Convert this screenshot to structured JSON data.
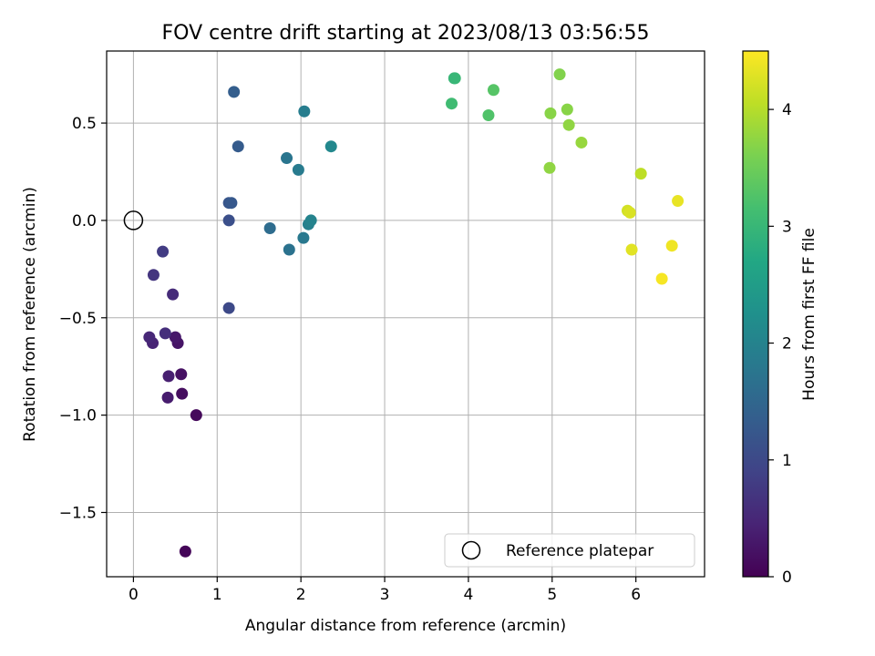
{
  "chart_data": {
    "type": "scatter",
    "title": "FOV centre drift starting at 2023/08/13 03:56:55",
    "xlabel": "Angular distance from reference (arcmin)",
    "ylabel": "Rotation from reference (arcmin)",
    "xlim": [
      -0.32,
      6.82
    ],
    "ylim": [
      -1.83,
      0.87
    ],
    "xticks": [
      0,
      1,
      2,
      3,
      4,
      5,
      6
    ],
    "xtick_labels": [
      "0",
      "1",
      "2",
      "3",
      "4",
      "5",
      "6"
    ],
    "yticks": [
      -1.5,
      -1.0,
      -0.5,
      0.0,
      0.5
    ],
    "ytick_labels": [
      "−1.5",
      "−1.0",
      "−0.5",
      "0.0",
      "0.5"
    ],
    "grid": true,
    "colormap": "viridis",
    "colorbar": {
      "label": "Hours from first FF file",
      "range": [
        0,
        4.5
      ],
      "ticks": [
        0,
        1,
        2,
        3,
        4
      ],
      "tick_labels": [
        "0",
        "1",
        "2",
        "3",
        "4"
      ]
    },
    "legend": {
      "placement": "lower-right",
      "entries": [
        {
          "label": "Reference platepar",
          "marker": "open-circle"
        }
      ]
    },
    "reference_point": {
      "x": 0,
      "y": 0
    },
    "points": [
      {
        "x": 0.62,
        "y": -1.7,
        "hours": 0.05
      },
      {
        "x": 0.75,
        "y": -1.0,
        "hours": 0.1
      },
      {
        "x": 0.58,
        "y": -0.89,
        "hours": 0.15
      },
      {
        "x": 0.57,
        "y": -0.79,
        "hours": 0.2
      },
      {
        "x": 0.53,
        "y": -0.63,
        "hours": 0.25
      },
      {
        "x": 0.5,
        "y": -0.6,
        "hours": 0.3
      },
      {
        "x": 0.41,
        "y": -0.91,
        "hours": 0.35
      },
      {
        "x": 0.42,
        "y": -0.8,
        "hours": 0.4
      },
      {
        "x": 0.23,
        "y": -0.63,
        "hours": 0.45
      },
      {
        "x": 0.19,
        "y": -0.6,
        "hours": 0.5
      },
      {
        "x": 0.47,
        "y": -0.38,
        "hours": 0.55
      },
      {
        "x": 0.38,
        "y": -0.58,
        "hours": 0.6
      },
      {
        "x": 0.24,
        "y": -0.28,
        "hours": 0.7
      },
      {
        "x": 0.35,
        "y": -0.16,
        "hours": 0.8
      },
      {
        "x": 1.14,
        "y": -0.45,
        "hours": 1.0
      },
      {
        "x": 1.14,
        "y": 0.0,
        "hours": 1.1
      },
      {
        "x": 1.14,
        "y": 0.09,
        "hours": 1.2
      },
      {
        "x": 1.17,
        "y": 0.09,
        "hours": 1.25
      },
      {
        "x": 1.25,
        "y": 0.38,
        "hours": 1.3
      },
      {
        "x": 1.2,
        "y": 0.66,
        "hours": 1.35
      },
      {
        "x": 1.63,
        "y": -0.04,
        "hours": 1.6
      },
      {
        "x": 1.86,
        "y": -0.15,
        "hours": 1.7
      },
      {
        "x": 2.03,
        "y": -0.09,
        "hours": 1.8
      },
      {
        "x": 1.83,
        "y": 0.32,
        "hours": 1.75
      },
      {
        "x": 1.97,
        "y": 0.26,
        "hours": 1.85
      },
      {
        "x": 2.04,
        "y": 0.56,
        "hours": 1.9
      },
      {
        "x": 2.09,
        "y": -0.02,
        "hours": 1.95
      },
      {
        "x": 2.12,
        "y": 0.0,
        "hours": 2.0
      },
      {
        "x": 2.36,
        "y": 0.38,
        "hours": 2.1
      },
      {
        "x": 3.84,
        "y": 0.73,
        "hours": 3.05
      },
      {
        "x": 3.83,
        "y": 0.73,
        "hours": 3.0
      },
      {
        "x": 3.8,
        "y": 0.6,
        "hours": 3.1
      },
      {
        "x": 4.24,
        "y": 0.54,
        "hours": 3.25
      },
      {
        "x": 4.3,
        "y": 0.67,
        "hours": 3.3
      },
      {
        "x": 4.97,
        "y": 0.27,
        "hours": 3.75
      },
      {
        "x": 4.98,
        "y": 0.55,
        "hours": 3.7
      },
      {
        "x": 5.09,
        "y": 0.75,
        "hours": 3.65
      },
      {
        "x": 5.18,
        "y": 0.57,
        "hours": 3.7
      },
      {
        "x": 5.2,
        "y": 0.49,
        "hours": 3.75
      },
      {
        "x": 5.35,
        "y": 0.4,
        "hours": 3.8
      },
      {
        "x": 6.06,
        "y": 0.24,
        "hours": 4.05
      },
      {
        "x": 5.9,
        "y": 0.05,
        "hours": 4.2
      },
      {
        "x": 5.93,
        "y": 0.04,
        "hours": 4.25
      },
      {
        "x": 5.95,
        "y": -0.15,
        "hours": 4.3
      },
      {
        "x": 6.5,
        "y": 0.1,
        "hours": 4.35
      },
      {
        "x": 6.43,
        "y": -0.13,
        "hours": 4.4
      },
      {
        "x": 6.31,
        "y": -0.3,
        "hours": 4.45
      }
    ]
  }
}
